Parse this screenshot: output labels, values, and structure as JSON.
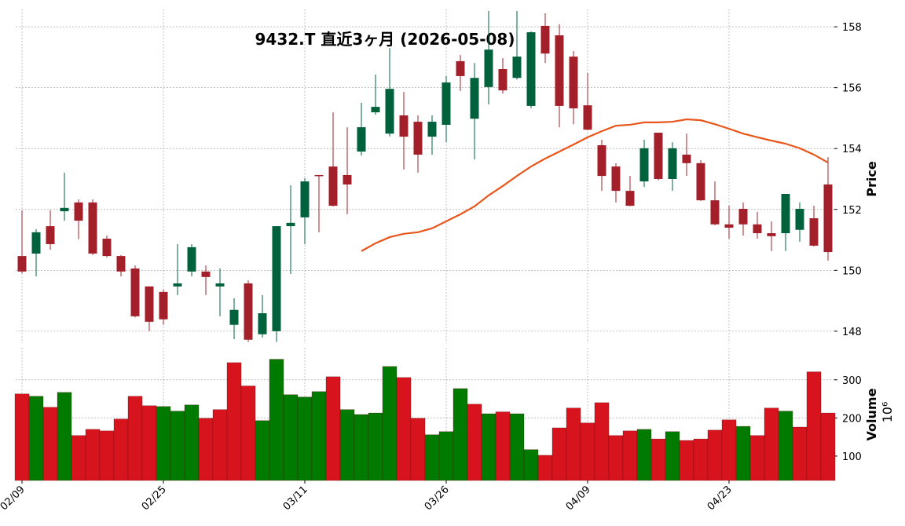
{
  "chart_data": {
    "type": "candlestick",
    "title": "9432.T 直近3ヶ月 (2026-05-08)",
    "ylabel": "Price",
    "categories": [
      "02/09",
      null,
      null,
      null,
      null,
      null,
      null,
      null,
      null,
      null,
      "02/25",
      null,
      null,
      null,
      null,
      null,
      null,
      null,
      null,
      null,
      "03/11",
      null,
      null,
      null,
      null,
      null,
      null,
      null,
      null,
      null,
      "03/26",
      null,
      null,
      null,
      null,
      null,
      null,
      null,
      null,
      null,
      "04/09",
      null,
      null,
      null,
      null,
      null,
      null,
      null,
      null,
      null,
      "04/23",
      null,
      null,
      null,
      null,
      null,
      null,
      null
    ],
    "open": [
      150.47,
      150.55,
      151.45,
      151.94,
      152.23,
      152.23,
      151.04,
      150.47,
      150.06,
      149.47,
      149.29,
      149.47,
      149.96,
      149.96,
      149.47,
      148.21,
      149.57,
      147.9,
      148.0,
      151.45,
      151.74,
      153.13,
      153.41,
      153.13,
      153.9,
      155.19,
      154.49,
      155.09,
      154.88,
      154.39,
      154.78,
      156.87,
      154.98,
      156.02,
      156.61,
      156.32,
      155.4,
      158.03,
      157.72,
      157.02,
      155.42,
      154.11,
      153.41,
      152.61,
      152.92,
      154.52,
      153.0,
      153.8,
      153.52,
      152.3,
      151.51,
      152.02,
      151.51,
      151.22,
      151.22,
      151.33,
      151.71,
      152.82
    ],
    "high": [
      151.97,
      151.35,
      151.97,
      153.21,
      152.33,
      152.33,
      151.14,
      150.5,
      150.16,
      149.47,
      149.37,
      150.86,
      150.86,
      150.16,
      150.06,
      149.08,
      149.67,
      149.19,
      151.45,
      152.79,
      153.03,
      153.13,
      155.19,
      154.7,
      155.5,
      156.43,
      157.3,
      155.86,
      155.09,
      155.09,
      156.38,
      157.07,
      156.81,
      158.52,
      156.97,
      158.52,
      157.85,
      158.44,
      158.08,
      157.2,
      156.48,
      154.29,
      153.52,
      153.1,
      154.29,
      154.52,
      154.21,
      154.49,
      153.62,
      152.92,
      152.12,
      152.23,
      151.92,
      151.61,
      152.51,
      152.23,
      152.12,
      153.72
    ],
    "low": [
      149.9,
      149.8,
      150.68,
      151.63,
      151.02,
      150.5,
      150.42,
      149.8,
      148.45,
      148.0,
      148.21,
      149.19,
      149.8,
      149.19,
      148.49,
      147.74,
      147.65,
      147.79,
      147.65,
      149.88,
      150.86,
      151.25,
      152.1,
      151.84,
      153.77,
      155.11,
      154.4,
      153.31,
      153.21,
      153.8,
      154.21,
      155.89,
      153.64,
      155.45,
      155.8,
      156.27,
      155.32,
      156.81,
      154.7,
      154.8,
      154.6,
      152.61,
      152.23,
      152.1,
      152.74,
      152.95,
      152.61,
      153.1,
      152.28,
      151.48,
      151.04,
      151.14,
      151.04,
      150.63,
      150.63,
      150.94,
      150.78,
      150.32
    ],
    "close": [
      149.96,
      151.25,
      150.86,
      152.05,
      151.63,
      150.55,
      150.47,
      149.96,
      148.49,
      148.31,
      148.39,
      149.57,
      150.76,
      149.78,
      149.57,
      148.7,
      147.72,
      148.59,
      151.45,
      151.56,
      152.92,
      153.1,
      152.12,
      152.82,
      154.7,
      155.37,
      155.96,
      154.39,
      153.8,
      154.88,
      156.17,
      156.38,
      156.32,
      157.25,
      155.91,
      157.02,
      157.82,
      157.12,
      155.4,
      155.32,
      154.62,
      153.1,
      152.61,
      152.12,
      154.01,
      153.0,
      154.01,
      153.52,
      152.3,
      151.51,
      151.4,
      151.51,
      151.22,
      151.12,
      152.51,
      152.02,
      150.81,
      150.6
    ],
    "up_color": "#00613d",
    "down_color": "#a3202a",
    "ylim": [
      147.61,
      158.57
    ],
    "yticks": [
      148,
      150,
      152,
      154,
      156,
      158
    ],
    "grid": true,
    "moving_average": {
      "color": "#e8561c",
      "values": [
        null,
        null,
        null,
        null,
        null,
        null,
        null,
        null,
        null,
        null,
        null,
        null,
        null,
        null,
        null,
        null,
        null,
        null,
        null,
        null,
        null,
        null,
        null,
        null,
        150.63,
        150.89,
        151.09,
        151.2,
        151.25,
        151.38,
        151.61,
        151.84,
        152.1,
        152.46,
        152.77,
        153.1,
        153.41,
        153.67,
        153.9,
        154.13,
        154.37,
        154.57,
        154.75,
        154.78,
        154.86,
        154.86,
        154.88,
        154.96,
        154.93,
        154.8,
        154.65,
        154.49,
        154.37,
        154.26,
        154.16,
        154.01,
        153.8,
        153.54
      ]
    },
    "volume": {
      "label": "Volume",
      "scale": "10⁶",
      "values": [
        263,
        257,
        228,
        267,
        154,
        170,
        166,
        197,
        257,
        232,
        230,
        218,
        234,
        199,
        222,
        345,
        284,
        193,
        354,
        261,
        255,
        269,
        308,
        222,
        209,
        213,
        335,
        306,
        199,
        156,
        164,
        277,
        236,
        211,
        216,
        211,
        117,
        102,
        174,
        226,
        187,
        240,
        154,
        166,
        170,
        145,
        164,
        141,
        145,
        168,
        195,
        178,
        154,
        226,
        218,
        176,
        321,
        213
      ],
      "colors": [
        "#d7141e",
        "#007a00",
        "#d7141e",
        "#007a00",
        "#d7141e",
        "#d7141e",
        "#d7141e",
        "#d7141e",
        "#d7141e",
        "#d7141e",
        "#007a00",
        "#007a00",
        "#007a00",
        "#d7141e",
        "#d7141e",
        "#d7141e",
        "#d7141e",
        "#007a00",
        "#007a00",
        "#007a00",
        "#007a00",
        "#007a00",
        "#d7141e",
        "#007a00",
        "#007a00",
        "#007a00",
        "#007a00",
        "#d7141e",
        "#d7141e",
        "#007a00",
        "#007a00",
        "#007a00",
        "#d7141e",
        "#007a00",
        "#d7141e",
        "#007a00",
        "#007a00",
        "#d7141e",
        "#d7141e",
        "#d7141e",
        "#d7141e",
        "#d7141e",
        "#d7141e",
        "#d7141e",
        "#007a00",
        "#d7141e",
        "#007a00",
        "#d7141e",
        "#d7141e",
        "#d7141e",
        "#d7141e",
        "#007a00",
        "#d7141e",
        "#d7141e",
        "#007a00",
        "#d7141e",
        "#d7141e",
        "#d7141e"
      ],
      "ylim": [
        36,
        384
      ],
      "yticks": [
        100,
        200,
        300
      ]
    }
  }
}
